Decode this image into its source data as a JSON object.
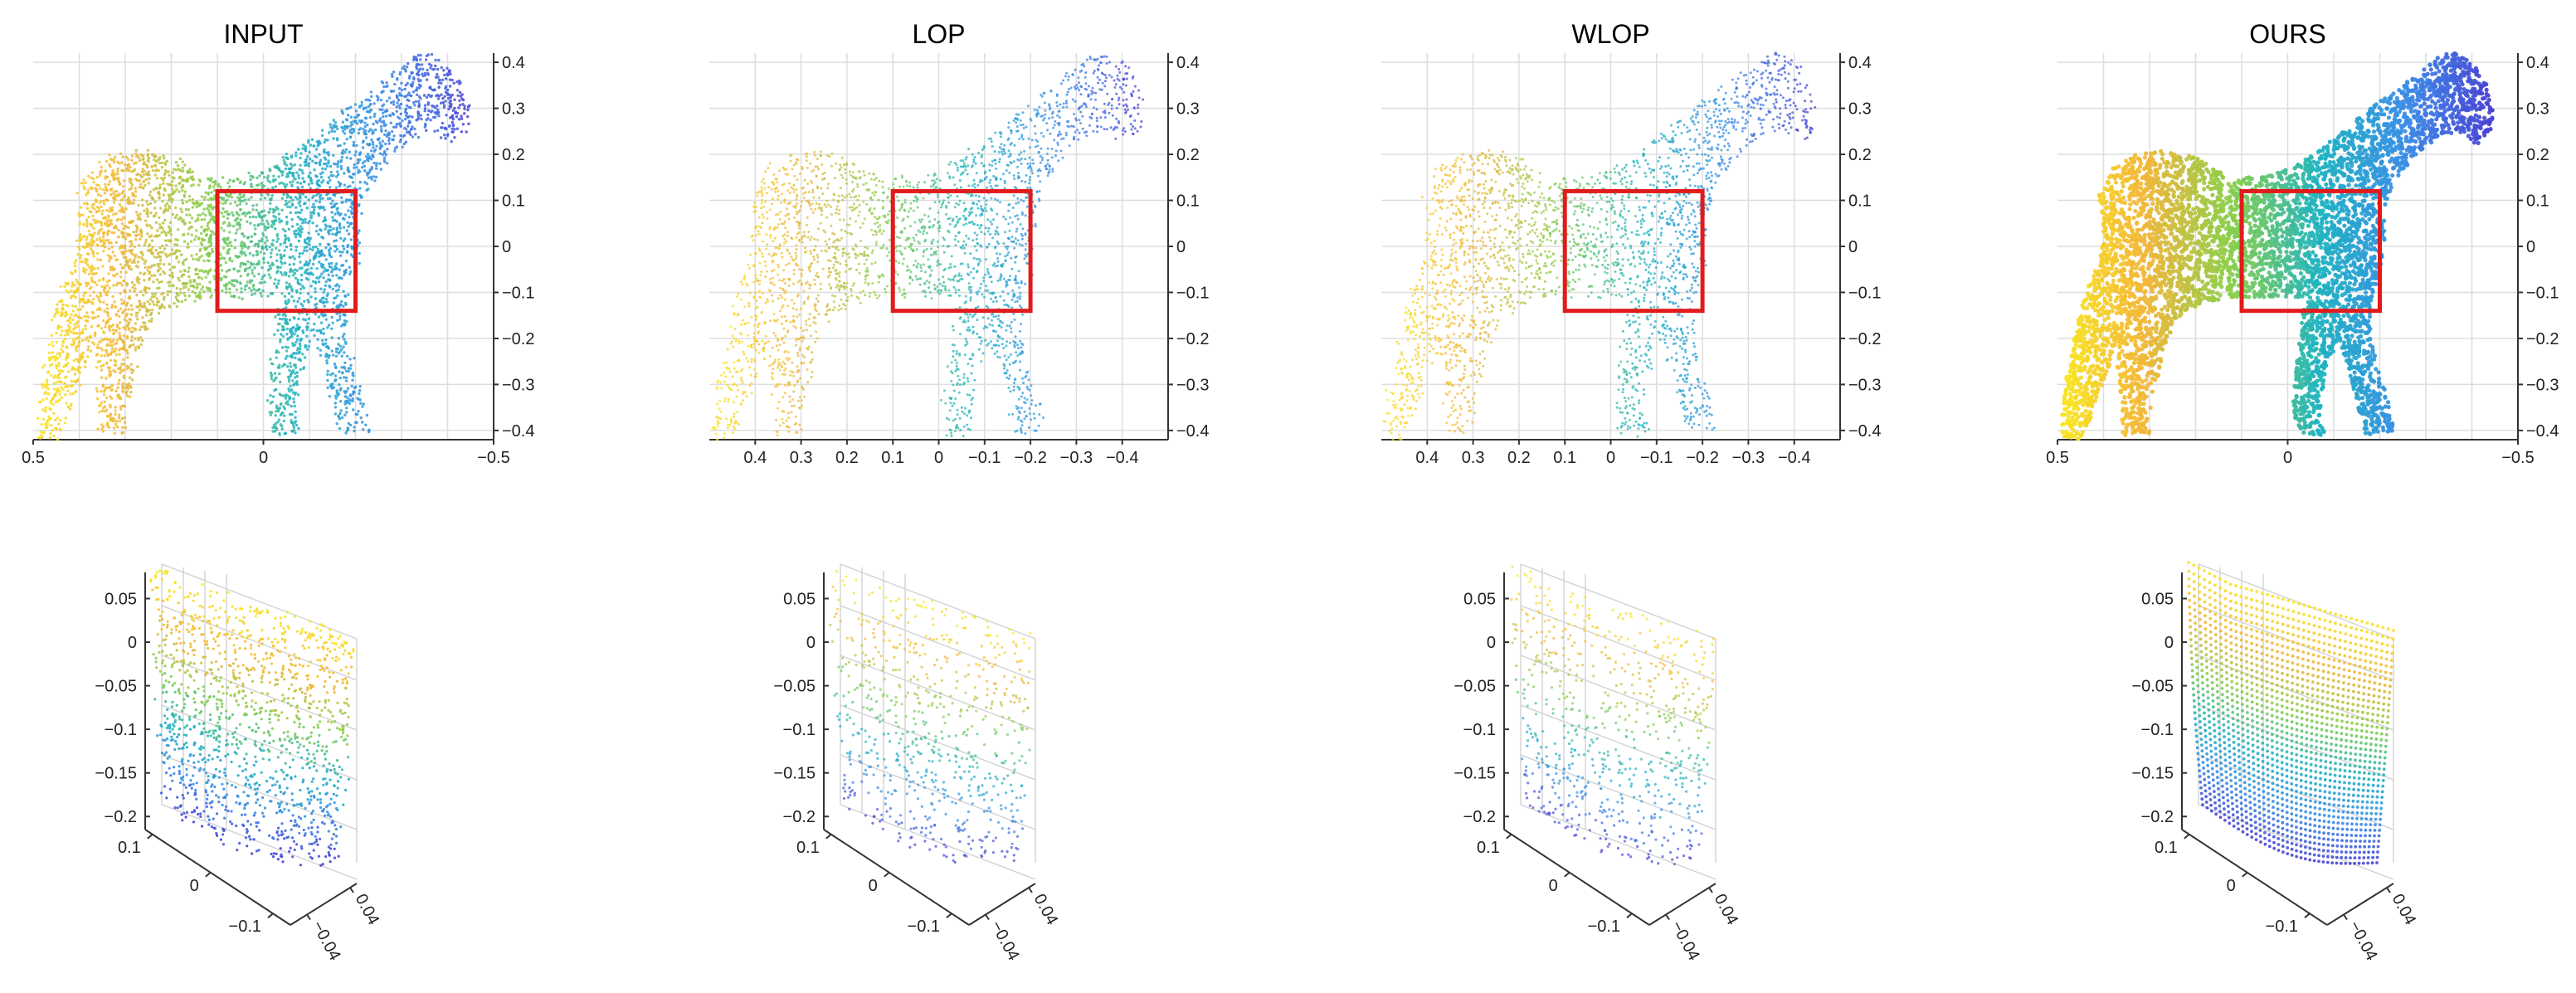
{
  "chart_data": [
    {
      "type": "scatter",
      "title": "INPUT",
      "view": "side",
      "xlim": [
        0.5,
        -0.5
      ],
      "ylim": [
        -0.42,
        0.42
      ],
      "x_ticks": [
        "0.5",
        "0",
        "−0.5"
      ],
      "y_ticks": [
        "0.4",
        "0.3",
        "0.2",
        "0.1",
        "0",
        "−0.1",
        "−0.2",
        "−0.3",
        "−0.4"
      ],
      "roi_box": {
        "x": [
          0.1,
          -0.2
        ],
        "y": [
          -0.14,
          0.12
        ]
      },
      "points": 4200,
      "density": "uniform noisy"
    },
    {
      "type": "scatter",
      "title": "LOP",
      "view": "side",
      "xlim": [
        0.5,
        -0.5
      ],
      "ylim": [
        -0.42,
        0.42
      ],
      "x_ticks": [
        "0.4",
        "0.3",
        "0.2",
        "0.1",
        "0",
        "−0.1",
        "−0.2",
        "−0.3",
        "−0.4"
      ],
      "y_ticks": [
        "0.4",
        "0.3",
        "0.2",
        "0.1",
        "0",
        "−0.1",
        "−0.2",
        "−0.3",
        "−0.4"
      ],
      "roi_box": {
        "x": [
          0.1,
          -0.2
        ],
        "y": [
          -0.14,
          0.12
        ]
      },
      "points": 2600,
      "density": "sparse"
    },
    {
      "type": "scatter",
      "title": "WLOP",
      "view": "side",
      "xlim": [
        0.5,
        -0.5
      ],
      "ylim": [
        -0.42,
        0.42
      ],
      "x_ticks": [
        "0.4",
        "0.3",
        "0.2",
        "0.1",
        "0",
        "−0.1",
        "−0.2",
        "−0.3",
        "−0.4"
      ],
      "y_ticks": [
        "0.4",
        "0.3",
        "0.2",
        "0.1",
        "0",
        "−0.1",
        "−0.2",
        "−0.3",
        "−0.4"
      ],
      "roi_box": {
        "x": [
          0.1,
          -0.2
        ],
        "y": [
          -0.14,
          0.12
        ]
      },
      "points": 2600,
      "density": "sparse"
    },
    {
      "type": "scatter",
      "title": "OURS",
      "view": "side",
      "xlim": [
        0.5,
        -0.5
      ],
      "ylim": [
        -0.42,
        0.42
      ],
      "x_ticks": [
        "0.5",
        "0",
        "−0.5"
      ],
      "y_ticks": [
        "0.4",
        "0.3",
        "0.2",
        "0.1",
        "0",
        "−0.1",
        "−0.2",
        "−0.3",
        "−0.4"
      ],
      "roi_box": {
        "x": [
          0.1,
          -0.2
        ],
        "y": [
          -0.14,
          0.12
        ]
      },
      "points": 6000,
      "density": "dense smooth"
    },
    {
      "type": "scatter",
      "title": "",
      "view": "3d-zoom",
      "z_ticks": [
        "0.05",
        "0",
        "−0.05",
        "−0.1",
        "−0.15",
        "−0.2"
      ],
      "y_ticks": [
        "0.1",
        "0",
        "−0.1"
      ],
      "x_ticks": [
        "0.04",
        "−0.04"
      ],
      "points": 1300,
      "style": "noisy"
    },
    {
      "type": "scatter",
      "title": "",
      "view": "3d-zoom",
      "z_ticks": [
        "0.05",
        "0",
        "−0.05",
        "−0.1",
        "−0.15",
        "−0.2"
      ],
      "y_ticks": [
        "0.1",
        "0",
        "−0.1"
      ],
      "x_ticks": [
        "0.04",
        "−0.04"
      ],
      "points": 700,
      "style": "sparse"
    },
    {
      "type": "scatter",
      "title": "",
      "view": "3d-zoom",
      "z_ticks": [
        "0.05",
        "0",
        "−0.05",
        "−0.1",
        "−0.15",
        "−0.2"
      ],
      "y_ticks": [
        "0.1",
        "0",
        "−0.1"
      ],
      "x_ticks": [
        "0.04",
        "−0.04"
      ],
      "points": 700,
      "style": "sparse"
    },
    {
      "type": "scatter",
      "title": "",
      "view": "3d-zoom",
      "z_ticks": [
        "0.05",
        "0",
        "−0.05",
        "−0.1",
        "−0.15",
        "−0.2"
      ],
      "y_ticks": [
        "0.1",
        "0",
        "−0.1"
      ],
      "x_ticks": [
        "0.04",
        "−0.04"
      ],
      "points": 1600,
      "style": "regular"
    }
  ],
  "colors": {
    "colormap": [
      "#f9e821",
      "#f2b63a",
      "#88cf4b",
      "#1fb3c2",
      "#3b8ce8",
      "#4a3fd2"
    ],
    "roi": "#e11b1b",
    "axis": "#333333",
    "grid": "#dddddd"
  }
}
